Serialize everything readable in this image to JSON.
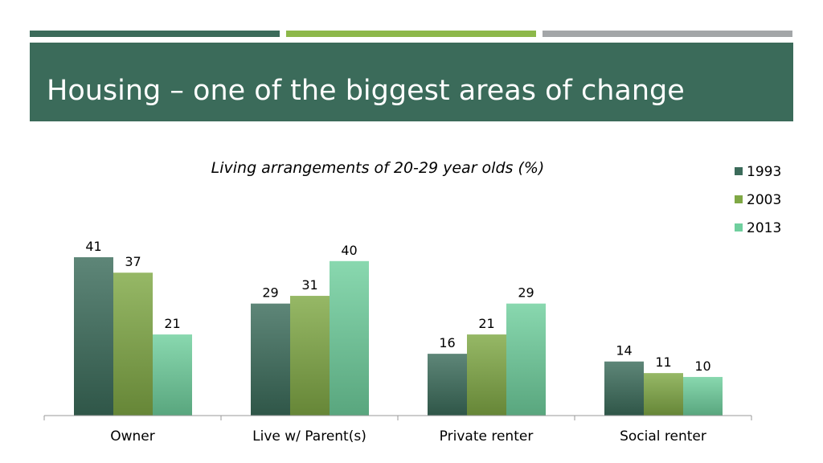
{
  "slide": {
    "title": "Housing – one of the biggest areas of change"
  },
  "chart_data": {
    "type": "bar",
    "title": "Living arrangements of 20-29 year olds (%)",
    "categories": [
      "Owner",
      "Live w/ Parent(s)",
      "Private renter",
      "Social renter"
    ],
    "series": [
      {
        "name": "1993",
        "values": [
          41,
          29,
          16,
          14
        ],
        "color": "#3b6b5a"
      },
      {
        "name": "2003",
        "values": [
          37,
          31,
          21,
          11
        ],
        "color": "#7fa845"
      },
      {
        "name": "2013",
        "values": [
          21,
          40,
          29,
          10
        ],
        "color": "#6fcf9e"
      }
    ],
    "ylim": [
      0,
      41
    ],
    "grid": false,
    "legend_position": "top-right"
  }
}
